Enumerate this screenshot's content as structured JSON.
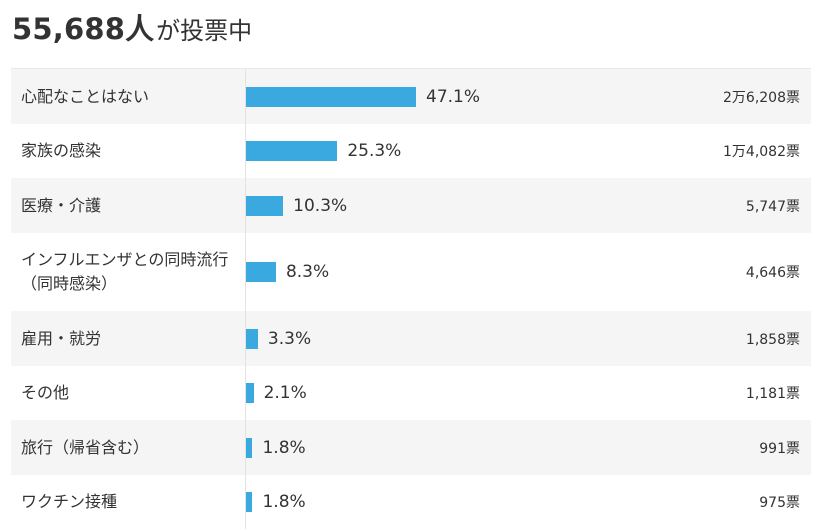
{
  "header": {
    "count": "55,688",
    "count_unit": "人",
    "suffix": "が投票中"
  },
  "chart_data": {
    "type": "bar",
    "orientation": "horizontal",
    "categories": [
      "心配なことはない",
      "家族の感染",
      "医療・介護",
      "インフルエンザとの同時流行（同時感染）",
      "雇用・就労",
      "その他",
      "旅行（帰省含む）",
      "ワクチン接種"
    ],
    "values": [
      47.1,
      25.3,
      10.3,
      8.3,
      3.3,
      2.1,
      1.8,
      1.8
    ],
    "percent_labels": [
      "47.1%",
      "25.3%",
      "10.3%",
      "8.3%",
      "3.3%",
      "2.1%",
      "1.8%",
      "1.8%"
    ],
    "vote_labels": [
      "2万6,208票",
      "1万4,082票",
      "5,747票",
      "4,646票",
      "1,858票",
      "1,181票",
      "991票",
      "975票"
    ],
    "xlim": [
      0,
      100
    ],
    "bar_color": "#39a9e0"
  }
}
